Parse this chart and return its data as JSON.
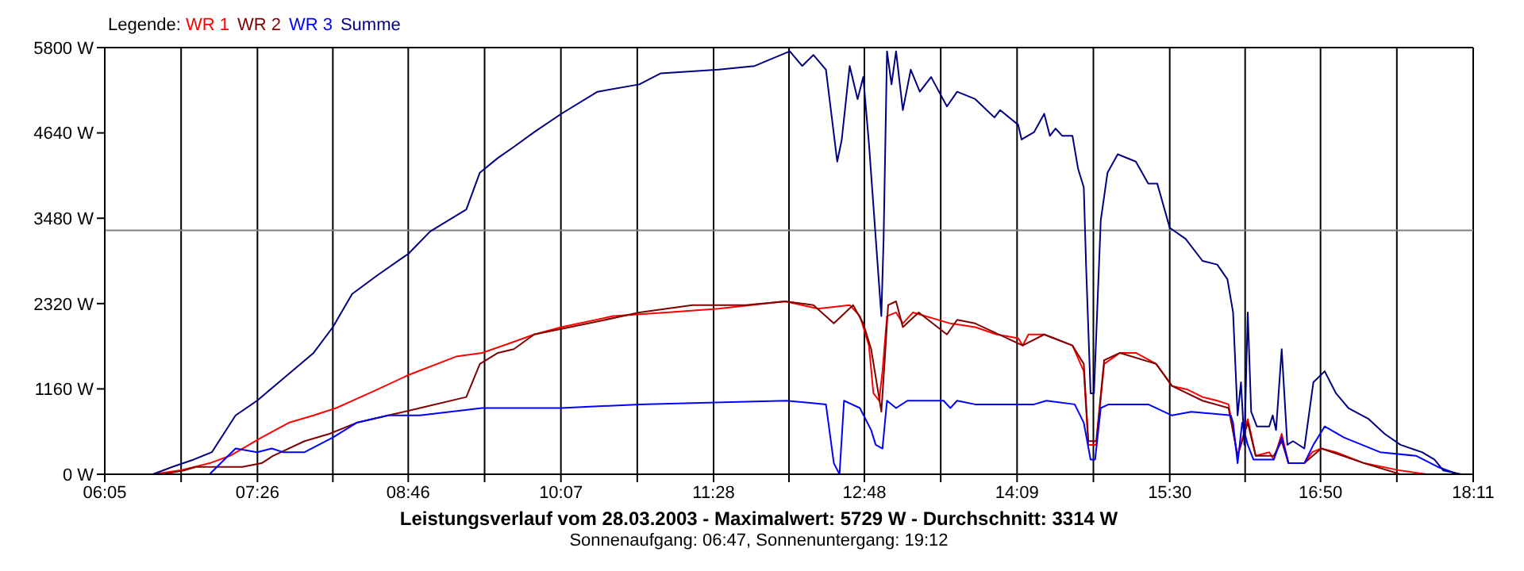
{
  "chart_data": {
    "type": "line",
    "title": "Leistungsverlauf vom 28.03.2003 - Maximalwert: 5729 W - Durchschnitt: 3314 W",
    "subtitle": "Sonnenaufgang: 06:47, Sonnenuntergang: 19:12",
    "legend_title": "Legende:",
    "legend": "top left",
    "grid": true,
    "marker": "none",
    "line_style": "solid",
    "xlim": [
      6.0833,
      18.1833
    ],
    "xticks": [
      {
        "value": 6.0833,
        "label": "06:05"
      },
      {
        "value": 6.7583,
        "label": null
      },
      {
        "value": 7.4333,
        "label": "07:26"
      },
      {
        "value": 8.1,
        "label": null
      },
      {
        "value": 8.7667,
        "label": "08:46"
      },
      {
        "value": 9.4417,
        "label": null
      },
      {
        "value": 10.1167,
        "label": "10:07"
      },
      {
        "value": 10.7917,
        "label": null
      },
      {
        "value": 11.4667,
        "label": "11:28"
      },
      {
        "value": 12.1333,
        "label": null
      },
      {
        "value": 12.8,
        "label": "12:48"
      },
      {
        "value": 13.475,
        "label": null
      },
      {
        "value": 14.15,
        "label": "14:09"
      },
      {
        "value": 14.825,
        "label": null
      },
      {
        "value": 15.5,
        "label": "15:30"
      },
      {
        "value": 16.1667,
        "label": null
      },
      {
        "value": 16.8333,
        "label": "16:50"
      },
      {
        "value": 17.5083,
        "label": null
      },
      {
        "value": 18.1833,
        "label": "18:11"
      }
    ],
    "ylim": [
      0,
      5800
    ],
    "yticks": [
      {
        "value": 0,
        "label": "0 W"
      },
      {
        "value": 1160,
        "label": "1160 W"
      },
      {
        "value": 2320,
        "label": "2320 W"
      },
      {
        "value": 3480,
        "label": "3480 W"
      },
      {
        "value": 4640,
        "label": "4640 W"
      },
      {
        "value": 5800,
        "label": "5800 W"
      }
    ],
    "ref_lines": [
      {
        "axis": "y",
        "value": 3314,
        "color": "#808080"
      }
    ],
    "series": [
      {
        "name": "WR 1",
        "color": "#ff0000",
        "x": [
          6.51,
          6.74,
          7.01,
          7.19,
          7.47,
          7.71,
          7.93,
          8.13,
          8.49,
          8.77,
          9.19,
          9.42,
          9.7,
          9.88,
          10.12,
          10.58,
          11.05,
          11.51,
          12.1,
          12.39,
          12.67,
          12.76,
          12.84,
          12.88,
          12.93,
          12.96,
          13.0,
          13.08,
          13.14,
          13.23,
          13.56,
          13.78,
          13.97,
          14.16,
          14.2,
          14.25,
          14.39,
          14.64,
          14.74,
          14.78,
          14.85,
          14.92,
          15.06,
          15.2,
          15.38,
          15.52,
          15.66,
          15.79,
          15.92,
          16.02,
          16.06,
          16.1,
          16.19,
          16.26,
          16.38,
          16.42,
          16.49,
          16.55,
          16.69,
          16.76,
          16.84,
          16.97,
          17.22,
          17.54,
          17.77
        ],
        "values": [
          0,
          50,
          150,
          250,
          500,
          700,
          800,
          900,
          1150,
          1350,
          1600,
          1650,
          1800,
          1900,
          2000,
          2150,
          2200,
          2250,
          2350,
          2250,
          2300,
          2150,
          1750,
          1100,
          1000,
          1400,
          2150,
          2200,
          2050,
          2200,
          2050,
          2000,
          1900,
          1850,
          1750,
          1900,
          1900,
          1750,
          1400,
          400,
          400,
          1500,
          1650,
          1650,
          1500,
          1200,
          1150,
          1050,
          1000,
          950,
          600,
          250,
          750,
          250,
          300,
          200,
          550,
          150,
          150,
          300,
          350,
          300,
          150,
          50,
          0
        ]
      },
      {
        "name": "WR 2",
        "color": "#800000",
        "x": [
          6.59,
          6.78,
          6.89,
          7.3,
          7.47,
          7.57,
          7.85,
          8.07,
          8.31,
          8.59,
          8.87,
          9.28,
          9.4,
          9.56,
          9.7,
          9.88,
          10.36,
          10.81,
          11.28,
          11.75,
          12.1,
          12.35,
          12.53,
          12.7,
          12.79,
          12.86,
          12.95,
          12.98,
          13.01,
          13.08,
          13.14,
          13.28,
          13.53,
          13.62,
          13.78,
          14.2,
          14.39,
          14.64,
          14.74,
          14.78,
          14.85,
          14.92,
          15.06,
          15.38,
          15.52,
          15.79,
          16.02,
          16.1,
          16.19,
          16.26,
          16.42,
          16.49,
          16.55,
          16.69,
          16.84,
          17.22,
          17.54,
          17.87
        ],
        "values": [
          0,
          50,
          100,
          100,
          150,
          250,
          450,
          550,
          700,
          800,
          900,
          1050,
          1500,
          1650,
          1700,
          1900,
          2050,
          2200,
          2300,
          2300,
          2350,
          2300,
          2050,
          2300,
          2050,
          1700,
          850,
          1550,
          2300,
          2350,
          2000,
          2200,
          1900,
          2100,
          2050,
          1750,
          1900,
          1750,
          1500,
          450,
          450,
          1550,
          1650,
          1500,
          1200,
          1000,
          900,
          250,
          700,
          250,
          250,
          450,
          150,
          150,
          350,
          150,
          0,
          0
        ]
      },
      {
        "name": "WR 3",
        "color": "#0000ff",
        "x": [
          7.01,
          7.24,
          7.43,
          7.56,
          7.66,
          7.85,
          8.1,
          8.31,
          8.59,
          8.87,
          9.42,
          10.12,
          10.81,
          12.11,
          12.46,
          12.53,
          12.58,
          12.62,
          12.76,
          12.86,
          12.9,
          12.96,
          13.0,
          13.08,
          13.18,
          13.5,
          13.56,
          13.62,
          13.78,
          14.16,
          14.3,
          14.41,
          14.66,
          14.74,
          14.8,
          14.84,
          14.89,
          14.96,
          15.31,
          15.52,
          15.69,
          16.04,
          16.06,
          16.1,
          16.14,
          16.19,
          16.24,
          16.42,
          16.49,
          16.55,
          16.69,
          16.77,
          16.87,
          17.04,
          17.36,
          17.68,
          17.87,
          18.05
        ],
        "values": [
          0,
          350,
          300,
          350,
          300,
          300,
          500,
          700,
          800,
          800,
          900,
          900,
          950,
          1000,
          950,
          150,
          0,
          1000,
          900,
          600,
          400,
          350,
          1000,
          900,
          1000,
          1000,
          900,
          1000,
          950,
          950,
          950,
          1000,
          950,
          700,
          200,
          200,
          900,
          950,
          950,
          800,
          850,
          800,
          700,
          150,
          700,
          400,
          200,
          200,
          500,
          150,
          150,
          400,
          650,
          500,
          300,
          250,
          100,
          0
        ]
      },
      {
        "name": "Summe",
        "color": "#000080",
        "x": [
          6.51,
          6.68,
          6.87,
          7.03,
          7.24,
          7.43,
          7.66,
          7.93,
          8.1,
          8.27,
          8.49,
          8.77,
          8.96,
          9.28,
          9.4,
          9.56,
          9.7,
          9.88,
          10.12,
          10.44,
          10.81,
          11.0,
          11.51,
          11.83,
          12.14,
          12.25,
          12.35,
          12.46,
          12.56,
          12.6,
          12.67,
          12.74,
          12.79,
          12.84,
          12.95,
          12.97,
          13.0,
          13.04,
          13.08,
          13.14,
          13.21,
          13.29,
          13.39,
          13.53,
          13.62,
          13.78,
          13.95,
          14.0,
          14.16,
          14.19,
          14.3,
          14.39,
          14.44,
          14.49,
          14.55,
          14.64,
          14.69,
          14.74,
          14.76,
          14.8,
          14.83,
          14.89,
          14.95,
          15.04,
          15.2,
          15.31,
          15.39,
          15.5,
          15.64,
          15.79,
          15.92,
          16.01,
          16.06,
          16.1,
          16.13,
          16.16,
          16.19,
          16.22,
          16.27,
          16.38,
          16.41,
          16.44,
          16.49,
          16.54,
          16.59,
          16.69,
          16.77,
          16.87,
          16.97,
          17.08,
          17.26,
          17.4,
          17.54,
          17.73,
          17.84,
          17.92,
          18.08
        ],
        "values": [
          0,
          100,
          200,
          300,
          800,
          1000,
          1300,
          1650,
          2000,
          2450,
          2700,
          3000,
          3300,
          3600,
          4100,
          4300,
          4450,
          4650,
          4900,
          5200,
          5300,
          5450,
          5500,
          5550,
          5750,
          5550,
          5700,
          5500,
          4250,
          4550,
          5550,
          5100,
          5400,
          4500,
          2150,
          3200,
          5750,
          5300,
          5750,
          4950,
          5500,
          5200,
          5400,
          5000,
          5200,
          5100,
          4850,
          4950,
          4750,
          4550,
          4650,
          4900,
          4600,
          4700,
          4600,
          4600,
          4150,
          3900,
          2850,
          1100,
          1100,
          3450,
          4100,
          4350,
          4250,
          3950,
          3950,
          3350,
          3200,
          2900,
          2850,
          2650,
          2200,
          800,
          1250,
          400,
          2200,
          850,
          650,
          650,
          800,
          600,
          1700,
          400,
          450,
          350,
          1250,
          1400,
          1100,
          900,
          750,
          550,
          400,
          300,
          200,
          50,
          0
        ]
      }
    ]
  }
}
